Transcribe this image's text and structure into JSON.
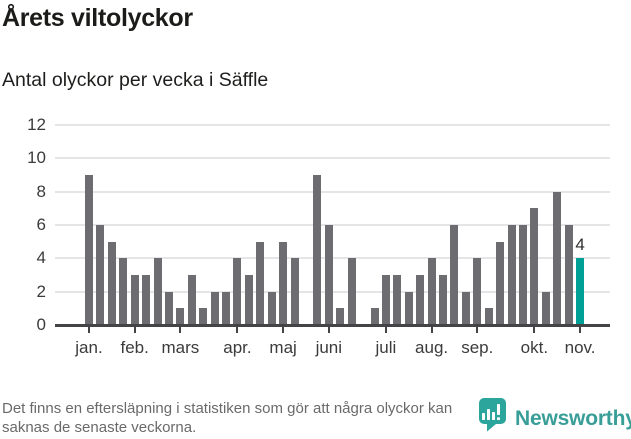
{
  "header": {
    "title": "Årets viltolyckor",
    "subtitle": "Antal olyckor per vecka i Säffle"
  },
  "chart_data": {
    "type": "bar",
    "title": "Årets viltolyckor",
    "subtitle": "Antal olyckor per vecka i Säffle",
    "x_unit": "vecka",
    "weeks_start": 1,
    "values": [
      9,
      6,
      5,
      4,
      3,
      3,
      4,
      2,
      1,
      3,
      1,
      2,
      2,
      4,
      3,
      5,
      2,
      5,
      4,
      0,
      9,
      6,
      1,
      4,
      0,
      1,
      3,
      3,
      2,
      3,
      4,
      3,
      6,
      2,
      4,
      1,
      5,
      6,
      6,
      7,
      2,
      8,
      6,
      4
    ],
    "highlight_index": 43,
    "highlight_label": "4",
    "yticks": [
      0,
      2,
      4,
      6,
      8,
      10,
      12
    ],
    "ylim": [
      0,
      12
    ],
    "grid": "horizontal",
    "legend": "none",
    "month_ticks": [
      {
        "label": "jan.",
        "week": 1
      },
      {
        "label": "feb.",
        "week": 5
      },
      {
        "label": "mars",
        "week": 9
      },
      {
        "label": "apr.",
        "week": 14
      },
      {
        "label": "maj",
        "week": 18
      },
      {
        "label": "juni",
        "week": 22
      },
      {
        "label": "juli",
        "week": 27
      },
      {
        "label": "aug.",
        "week": 31
      },
      {
        "label": "sep.",
        "week": 35
      },
      {
        "label": "okt.",
        "week": 40
      },
      {
        "label": "nov.",
        "week": 44
      }
    ],
    "colors": {
      "bar": "#6c6c71",
      "highlight": "#00a096",
      "gridline": "#e5e5e7",
      "axis": "#444446"
    }
  },
  "footer": {
    "note": "Det finns en eftersläpning i statistiken som gör att några olyckor kan saknas de senaste veckorna.",
    "brand": "Newsworthy",
    "brand_color": "#389e97",
    "logo_color": "#2ca69d"
  }
}
